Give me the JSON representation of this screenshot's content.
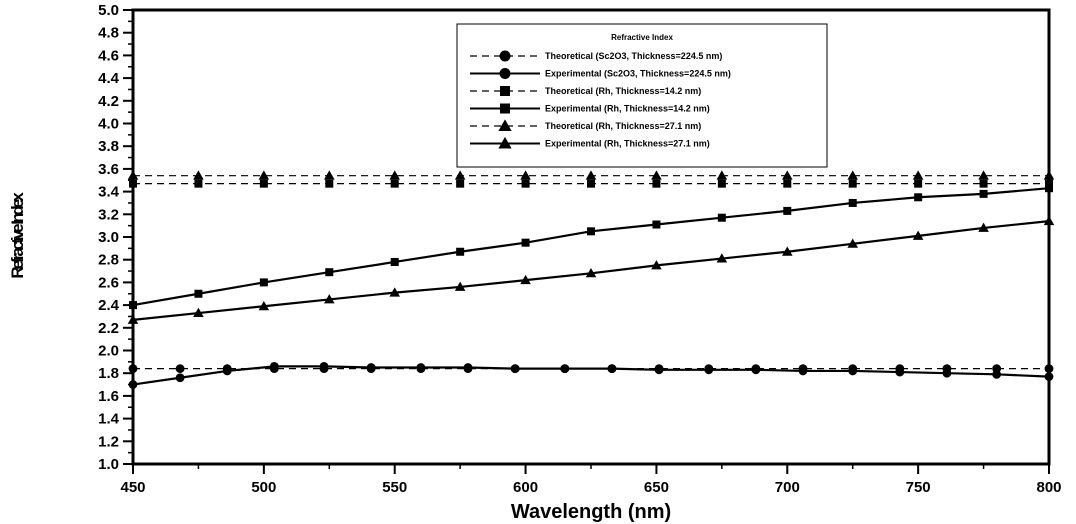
{
  "chart_data": {
    "type": "line",
    "title": "",
    "xlabel": "Wavelength (nm)",
    "ylabel": "Refractive Index",
    "xlim": [
      450,
      800
    ],
    "ylim": [
      1.0,
      5.0
    ],
    "x_ticks": [
      450,
      500,
      550,
      600,
      650,
      700,
      750,
      800
    ],
    "y_ticks": [
      1.0,
      1.2,
      1.4,
      1.6,
      1.8,
      2.0,
      2.2,
      2.4,
      2.6,
      2.8,
      3.0,
      3.2,
      3.4,
      3.6,
      3.8,
      4.0,
      4.2,
      4.4,
      4.6,
      4.8,
      5.0
    ],
    "grid": false,
    "legend": {
      "title": "Refractive Index",
      "position": "top-right"
    },
    "series": [
      {
        "name": "Theoretical (Sc2O3, Thickness=224.5 nm)",
        "marker": "circle",
        "line_style": "dashed",
        "color": "#000000",
        "x": [
          450,
          468,
          486,
          504,
          523,
          541,
          560,
          578,
          596,
          615,
          633,
          651,
          670,
          688,
          706,
          725,
          743,
          761,
          780,
          800
        ],
        "y": [
          1.84,
          1.84,
          1.84,
          1.84,
          1.84,
          1.84,
          1.84,
          1.84,
          1.84,
          1.84,
          1.84,
          1.84,
          1.84,
          1.84,
          1.84,
          1.84,
          1.84,
          1.84,
          1.84,
          1.84
        ]
      },
      {
        "name": "Experimental (Sc2O3, Thickness=224.5 nm)",
        "marker": "circle",
        "line_style": "solid",
        "color": "#000000",
        "x": [
          450,
          468,
          486,
          504,
          523,
          541,
          560,
          578,
          596,
          615,
          633,
          651,
          670,
          688,
          706,
          725,
          743,
          761,
          780,
          800
        ],
        "y": [
          1.7,
          1.76,
          1.82,
          1.86,
          1.86,
          1.85,
          1.85,
          1.85,
          1.84,
          1.84,
          1.84,
          1.83,
          1.83,
          1.83,
          1.82,
          1.82,
          1.81,
          1.8,
          1.79,
          1.77
        ]
      },
      {
        "name": "Theoretical (Rh, Thickness=14.2 nm)",
        "marker": "square",
        "line_style": "dashed",
        "color": "#000000",
        "x": [
          450,
          475,
          500,
          525,
          550,
          575,
          600,
          625,
          650,
          675,
          700,
          725,
          750,
          775,
          800
        ],
        "y": [
          3.47,
          3.47,
          3.47,
          3.47,
          3.47,
          3.47,
          3.47,
          3.47,
          3.47,
          3.47,
          3.47,
          3.47,
          3.47,
          3.47,
          3.47
        ]
      },
      {
        "name": "Experimental (Rh, Thickness=14.2 nm)",
        "marker": "square",
        "line_style": "solid",
        "color": "#000000",
        "x": [
          450,
          475,
          500,
          525,
          550,
          575,
          600,
          625,
          650,
          675,
          700,
          725,
          750,
          775,
          800
        ],
        "y": [
          2.4,
          2.5,
          2.6,
          2.69,
          2.78,
          2.87,
          2.95,
          3.05,
          3.11,
          3.17,
          3.23,
          3.3,
          3.35,
          3.38,
          3.43
        ]
      },
      {
        "name": "Theoretical (Rh, Thickness=27.1 nm)",
        "marker": "triangle",
        "line_style": "dashed",
        "color": "#000000",
        "x": [
          450,
          475,
          500,
          525,
          550,
          575,
          600,
          625,
          650,
          675,
          700,
          725,
          750,
          775,
          800
        ],
        "y": [
          3.54,
          3.54,
          3.54,
          3.54,
          3.54,
          3.54,
          3.54,
          3.54,
          3.54,
          3.54,
          3.54,
          3.54,
          3.54,
          3.54,
          3.54
        ]
      },
      {
        "name": "Experimental (Rh, Thickness=27.1 nm)",
        "marker": "triangle",
        "line_style": "solid",
        "color": "#000000",
        "x": [
          450,
          475,
          500,
          525,
          550,
          575,
          600,
          625,
          650,
          675,
          700,
          725,
          750,
          775,
          800
        ],
        "y": [
          2.27,
          2.33,
          2.39,
          2.45,
          2.51,
          2.56,
          2.62,
          2.68,
          2.75,
          2.81,
          2.87,
          2.94,
          3.01,
          3.08,
          3.14
        ]
      }
    ]
  }
}
